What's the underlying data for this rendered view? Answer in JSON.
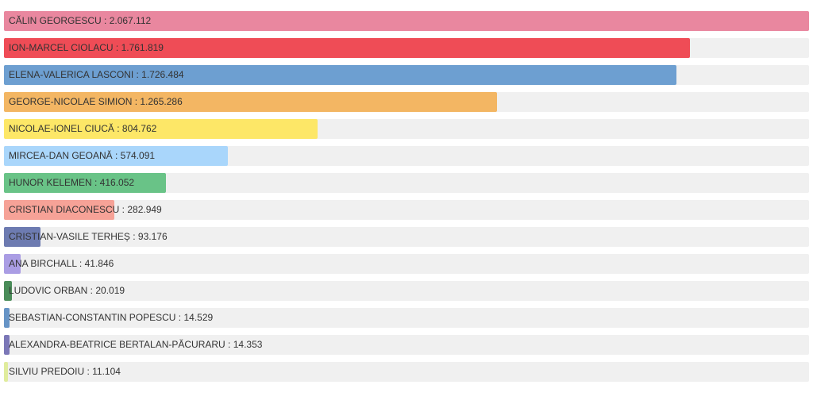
{
  "chart_data": {
    "type": "bar",
    "orientation": "horizontal",
    "bars": [
      {
        "name": "CĂLIN GEORGESCU",
        "display_value": "2.067.112",
        "value": 2067112,
        "color": "#e9879f"
      },
      {
        "name": "ION-MARCEL CIOLACU",
        "display_value": "1.761.819",
        "value": 1761819,
        "color": "#ef4c56"
      },
      {
        "name": "ELENA-VALERICA LASCONI",
        "display_value": "1.726.484",
        "value": 1726484,
        "color": "#6d9fd1"
      },
      {
        "name": "GEORGE-NICOLAE SIMION",
        "display_value": "1.265.286",
        "value": 1265286,
        "color": "#f3b663"
      },
      {
        "name": "NICOLAE-IONEL CIUCĂ",
        "display_value": "804.762",
        "value": 804762,
        "color": "#fde767"
      },
      {
        "name": "MIRCEA-DAN GEOANĂ",
        "display_value": "574.091",
        "value": 574091,
        "color": "#a9d6fb"
      },
      {
        "name": "HUNOR KELEMEN",
        "display_value": "416.052",
        "value": 416052,
        "color": "#69c387"
      },
      {
        "name": "CRISTIAN DIACONESCU",
        "display_value": "282.949",
        "value": 282949,
        "color": "#f6a297"
      },
      {
        "name": "CRISTIAN-VASILE TERHEȘ",
        "display_value": "93.176",
        "value": 93176,
        "color": "#6d7bb1"
      },
      {
        "name": "ANA BIRCHALL",
        "display_value": "41.846",
        "value": 41846,
        "color": "#aa9de4"
      },
      {
        "name": "LUDOVIC ORBAN",
        "display_value": "20.019",
        "value": 20019,
        "color": "#4a8c59"
      },
      {
        "name": "SEBASTIAN-CONSTANTIN POPESCU",
        "display_value": "14.529",
        "value": 14529,
        "color": "#6694c6"
      },
      {
        "name": "ALEXANDRA-BEATRICE BERTALAN-PĂCURARU",
        "display_value": "14.353",
        "value": 14353,
        "color": "#7b77b7"
      },
      {
        "name": "SILVIU PREDOIU",
        "display_value": "11.104",
        "value": 11104,
        "color": "#e0ec9d"
      }
    ],
    "xlim": [
      0,
      2067112
    ],
    "grid": false,
    "legend": "none"
  }
}
